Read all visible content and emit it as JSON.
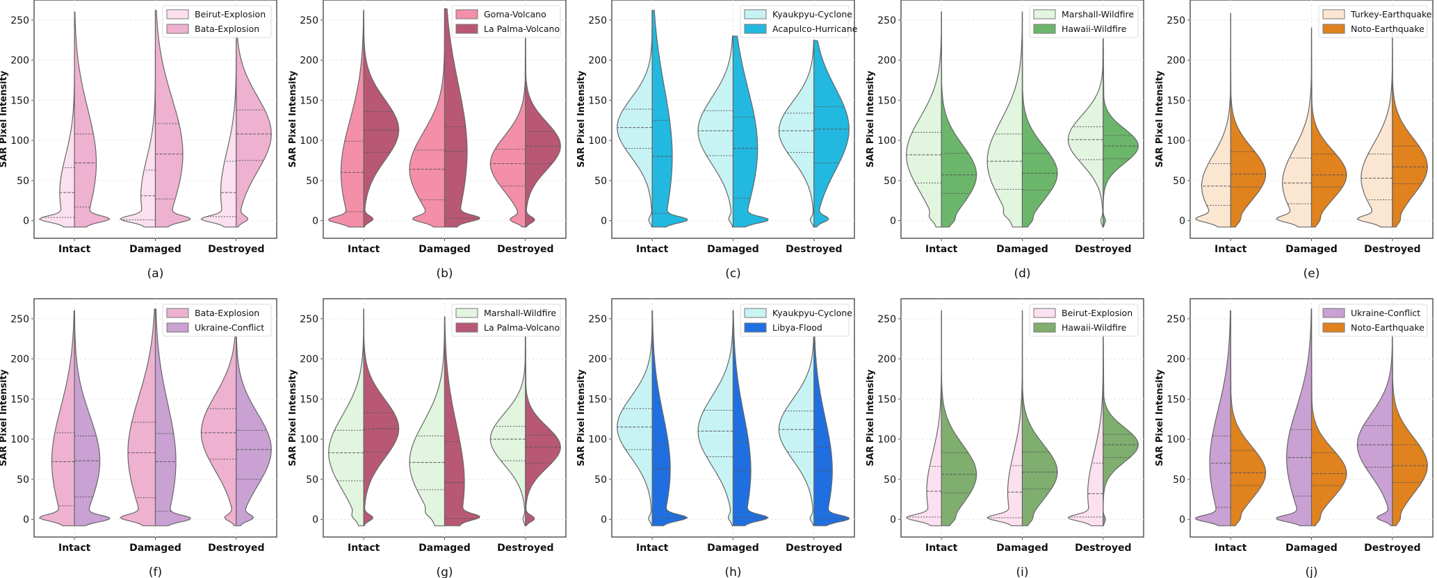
{
  "figure": {
    "ylabel": "SAR Pixel Intensity",
    "categories": [
      "Intact",
      "Damaged",
      "Destroyed"
    ],
    "yticks": [
      0,
      50,
      100,
      150,
      200,
      250
    ]
  },
  "chart_data": [
    {
      "panel": "(a)",
      "type": "violin-split",
      "xlabel": "",
      "ylabel": "SAR Pixel Intensity",
      "ylim": [
        -22,
        275
      ],
      "grid": true,
      "legend": "top-right",
      "categories": [
        "Intact",
        "Damaged",
        "Destroyed"
      ],
      "series": [
        {
          "name": "Beirut-Explosion",
          "color": "#fbe0ef",
          "side": "left",
          "stats": [
            {
              "q1": 4,
              "median": 35,
              "q3": 66,
              "max": 260,
              "spike": 2,
              "spread": 50
            },
            {
              "q1": 1,
              "median": 31,
              "q3": 63,
              "max": 262,
              "spike": 2,
              "spread": 50
            },
            {
              "q1": 5,
              "median": 35,
              "q3": 74,
              "max": 230,
              "spike": 2,
              "spread": 45
            }
          ]
        },
        {
          "name": "Bata-Explosion",
          "color": "#eeb1d0",
          "side": "right",
          "stats": [
            {
              "q1": 17,
              "median": 72,
              "q3": 108,
              "max": 260,
              "spike": 2,
              "spread": 32
            },
            {
              "q1": 27,
              "median": 83,
              "q3": 121,
              "max": 262,
              "spike": 2,
              "spread": 24
            },
            {
              "q1": 75,
              "median": 108,
              "q3": 138,
              "max": 230,
              "spike": 2,
              "spread": 8
            }
          ]
        }
      ]
    },
    {
      "panel": "(b)",
      "type": "violin-split",
      "ylabel": "SAR Pixel Intensity",
      "ylim": [
        -22,
        275
      ],
      "grid": true,
      "legend": "top-right",
      "categories": [
        "Intact",
        "Damaged",
        "Destroyed"
      ],
      "series": [
        {
          "name": "Goma-Volcano",
          "color": "#f48fa9",
          "side": "left",
          "stats": [
            {
              "q1": 11,
              "median": 60,
              "q3": 99,
              "max": 262,
              "spike": 1,
              "spread": 28
            },
            {
              "q1": 26,
              "median": 64,
              "q3": 88,
              "max": 264,
              "spike": 2,
              "spread": 16
            },
            {
              "q1": 43,
              "median": 71,
              "q3": 89,
              "max": 230,
              "spike": 1,
              "spread": 10
            }
          ]
        },
        {
          "name": "La Palma-Volcano",
          "color": "#b85874",
          "side": "right",
          "stats": [
            {
              "q1": 85,
              "median": 113,
              "q3": 136,
              "max": 262,
              "spike": 2,
              "spread": 8
            },
            {
              "q1": 3,
              "median": 86,
              "q3": 117,
              "max": 264,
              "spike": 3,
              "spread": 30
            },
            {
              "q1": 71,
              "median": 93,
              "q3": 111,
              "max": 230,
              "spike": 1,
              "spread": 8
            }
          ]
        }
      ]
    },
    {
      "panel": "(c)",
      "type": "violin-split",
      "ylabel": "SAR Pixel Intensity",
      "ylim": [
        -22,
        275
      ],
      "grid": true,
      "legend": "top-right",
      "categories": [
        "Intact",
        "Damaged",
        "Destroyed"
      ],
      "series": [
        {
          "name": "Kyaukpyu-Cyclone",
          "color": "#c8f3f4",
          "side": "left",
          "stats": [
            {
              "q1": 90,
              "median": 116,
              "q3": 139,
              "max": 262,
              "spike": 1,
              "spread": 3
            },
            {
              "q1": 81,
              "median": 112,
              "q3": 137,
              "max": 230,
              "spike": 2,
              "spread": 3
            },
            {
              "q1": 85,
              "median": 112,
              "q3": 134,
              "max": 225,
              "spike": 1,
              "spread": 3
            }
          ]
        },
        {
          "name": "Acapulco-Hurricane",
          "color": "#22b8e0",
          "side": "right",
          "stats": [
            {
              "q1": 9,
              "median": 80,
              "q3": 125,
              "max": 262,
              "spike": 1,
              "spread": 35
            },
            {
              "q1": 28,
              "median": 90,
              "q3": 129,
              "max": 230,
              "spike": 1,
              "spread": 30
            },
            {
              "q1": 72,
              "median": 114,
              "q3": 142,
              "max": 225,
              "spike": 2,
              "spread": 10
            }
          ]
        }
      ]
    },
    {
      "panel": "(d)",
      "type": "violin-split",
      "ylabel": "SAR Pixel Intensity",
      "ylim": [
        -22,
        275
      ],
      "grid": true,
      "legend": "top-right",
      "categories": [
        "Intact",
        "Damaged",
        "Destroyed"
      ],
      "series": [
        {
          "name": "Marshall-Wildfire",
          "color": "#e2f5df",
          "side": "left",
          "stats": [
            {
              "q1": 47,
              "median": 82,
              "q3": 110,
              "max": 260,
              "spike": 4,
              "spread": 3
            },
            {
              "q1": 39,
              "median": 74,
              "q3": 108,
              "max": 260,
              "spike": 8,
              "spread": 3
            },
            {
              "q1": 76,
              "median": 101,
              "q3": 117,
              "max": 227,
              "spike": 0,
              "spread": 2
            }
          ]
        },
        {
          "name": "Hawaii-Wildfire",
          "color": "#6bb66b",
          "side": "right",
          "stats": [
            {
              "q1": 34,
              "median": 57,
              "q3": 84,
              "max": 260,
              "spike": 0,
              "spread": 2
            },
            {
              "q1": 38,
              "median": 59,
              "q3": 84,
              "max": 260,
              "spike": 0,
              "spread": 2
            },
            {
              "q1": 77,
              "median": 93,
              "q3": 106,
              "max": 227,
              "spike": 0,
              "spread": 2
            }
          ]
        }
      ]
    },
    {
      "panel": "(e)",
      "type": "violin-split",
      "ylabel": "SAR Pixel Intensity",
      "ylim": [
        -22,
        275
      ],
      "grid": true,
      "legend": "top-right",
      "categories": [
        "Intact",
        "Damaged",
        "Destroyed"
      ],
      "series": [
        {
          "name": "Turkey-Earthquake",
          "color": "#fbe6d2",
          "side": "left",
          "stats": [
            {
              "q1": 19,
              "median": 43,
              "q3": 71,
              "max": 258,
              "spike": 2,
              "spread": 20
            },
            {
              "q1": 21,
              "median": 47,
              "q3": 78,
              "max": 240,
              "spike": 2,
              "spread": 20
            },
            {
              "q1": 26,
              "median": 53,
              "q3": 83,
              "max": 240,
              "spike": 2,
              "spread": 20
            }
          ]
        },
        {
          "name": "Noto-Earthquake",
          "color": "#e0821e",
          "side": "right",
          "stats": [
            {
              "q1": 42,
              "median": 58,
              "q3": 86,
              "max": 258,
              "spike": 0,
              "spread": 2
            },
            {
              "q1": 42,
              "median": 57,
              "q3": 83,
              "max": 240,
              "spike": 0,
              "spread": 2
            },
            {
              "q1": 46,
              "median": 67,
              "q3": 93,
              "max": 240,
              "spike": 0,
              "spread": 2
            }
          ]
        }
      ]
    },
    {
      "panel": "(f)",
      "type": "violin-split",
      "ylabel": "SAR Pixel Intensity",
      "ylim": [
        -22,
        275
      ],
      "grid": true,
      "legend": "top-right",
      "categories": [
        "Intact",
        "Damaged",
        "Destroyed"
      ],
      "series": [
        {
          "name": "Bata-Explosion",
          "color": "#eeb1d0",
          "side": "left",
          "stats": [
            {
              "q1": 17,
              "median": 72,
              "q3": 108,
              "max": 260,
              "spike": 2,
              "spread": 30
            },
            {
              "q1": 27,
              "median": 83,
              "q3": 121,
              "max": 262,
              "spike": 2,
              "spread": 24
            },
            {
              "q1": 75,
              "median": 108,
              "q3": 138,
              "max": 230,
              "spike": 2,
              "spread": 8
            }
          ]
        },
        {
          "name": "Ukraine-Conflict",
          "color": "#c9a1d3",
          "side": "right",
          "stats": [
            {
              "q1": 28,
              "median": 73,
              "q3": 104,
              "max": 260,
              "spike": 1,
              "spread": 30
            },
            {
              "q1": 10,
              "median": 72,
              "q3": 107,
              "max": 262,
              "spike": 1,
              "spread": 35
            },
            {
              "q1": 50,
              "median": 87,
              "q3": 111,
              "max": 230,
              "spike": 2,
              "spread": 10
            }
          ]
        }
      ]
    },
    {
      "panel": "(g)",
      "type": "violin-split",
      "ylabel": "SAR Pixel Intensity",
      "ylim": [
        -22,
        275
      ],
      "grid": true,
      "legend": "top-right",
      "categories": [
        "Intact",
        "Damaged",
        "Destroyed"
      ],
      "series": [
        {
          "name": "Marshall-Wildfire",
          "color": "#e2f5df",
          "side": "left",
          "stats": [
            {
              "q1": 48,
              "median": 83,
              "q3": 111,
              "max": 262,
              "spike": 4,
              "spread": 3
            },
            {
              "q1": 37,
              "median": 71,
              "q3": 104,
              "max": 253,
              "spike": 8,
              "spread": 3
            },
            {
              "q1": 73,
              "median": 100,
              "q3": 116,
              "max": 228,
              "spike": 0,
              "spread": 2
            }
          ]
        },
        {
          "name": "La Palma-Volcano",
          "color": "#b85874",
          "side": "right",
          "stats": [
            {
              "q1": 84,
              "median": 113,
              "q3": 133,
              "max": 262,
              "spike": 2,
              "spread": 8
            },
            {
              "q1": 1,
              "median": 46,
              "q3": 97,
              "max": 253,
              "spike": 3,
              "spread": 30
            },
            {
              "q1": 70,
              "median": 90,
              "q3": 105,
              "max": 228,
              "spike": 1,
              "spread": 8
            }
          ]
        }
      ]
    },
    {
      "panel": "(h)",
      "type": "violin-split",
      "ylabel": "SAR Pixel Intensity",
      "ylim": [
        -22,
        275
      ],
      "grid": true,
      "legend": "top-right",
      "categories": [
        "Intact",
        "Damaged",
        "Destroyed"
      ],
      "series": [
        {
          "name": "Kyaukpyu-Cyclone",
          "color": "#c8f3f4",
          "side": "left",
          "stats": [
            {
              "q1": 87,
              "median": 115,
              "q3": 138,
              "max": 260,
              "spike": 1,
              "spread": 3
            },
            {
              "q1": 78,
              "median": 110,
              "q3": 136,
              "max": 260,
              "spike": 2,
              "spread": 3
            },
            {
              "q1": 84,
              "median": 112,
              "q3": 135,
              "max": 228,
              "spike": 1,
              "spread": 3
            }
          ]
        },
        {
          "name": "Libya-Flood",
          "color": "#1f6fe0",
          "side": "right",
          "stats": [
            {
              "q1": 2,
              "median": 63,
              "q3": 93,
              "max": 260,
              "spike": 2,
              "spread": 40
            },
            {
              "q1": 2,
              "median": 61,
              "q3": 96,
              "max": 260,
              "spike": 2,
              "spread": 40
            },
            {
              "q1": 1,
              "median": 61,
              "q3": 90,
              "max": 228,
              "spike": 1,
              "spread": 40
            }
          ]
        }
      ]
    },
    {
      "panel": "(i)",
      "type": "violin-split",
      "ylabel": "SAR Pixel Intensity",
      "ylim": [
        -22,
        275
      ],
      "grid": true,
      "legend": "top-right",
      "categories": [
        "Intact",
        "Damaged",
        "Destroyed"
      ],
      "series": [
        {
          "name": "Beirut-Explosion",
          "color": "#fbe0ef",
          "side": "left",
          "stats": [
            {
              "q1": 3,
              "median": 35,
              "q3": 66,
              "max": 260,
              "spike": 2,
              "spread": 50
            },
            {
              "q1": 2,
              "median": 34,
              "q3": 67,
              "max": 260,
              "spike": 2,
              "spread": 50
            },
            {
              "q1": 3,
              "median": 32,
              "q3": 70,
              "max": 230,
              "spike": 2,
              "spread": 45
            }
          ]
        },
        {
          "name": "Hawaii-Wildfire",
          "color": "#7fae6e",
          "side": "right",
          "stats": [
            {
              "q1": 33,
              "median": 56,
              "q3": 83,
              "max": 260,
              "spike": 0,
              "spread": 2
            },
            {
              "q1": 38,
              "median": 59,
              "q3": 84,
              "max": 260,
              "spike": 0,
              "spread": 2
            },
            {
              "q1": 77,
              "median": 93,
              "q3": 106,
              "max": 230,
              "spike": 0,
              "spread": 2
            }
          ]
        }
      ]
    },
    {
      "panel": "(j)",
      "type": "violin-split",
      "ylabel": "SAR Pixel Intensity",
      "ylim": [
        -22,
        275
      ],
      "grid": true,
      "legend": "top-right",
      "categories": [
        "Intact",
        "Damaged",
        "Destroyed"
      ],
      "series": [
        {
          "name": "Ukraine-Conflict",
          "color": "#c9a1d3",
          "side": "left",
          "stats": [
            {
              "q1": 15,
              "median": 70,
              "q3": 104,
              "max": 260,
              "spike": 1,
              "spread": 35
            },
            {
              "q1": 29,
              "median": 77,
              "q3": 112,
              "max": 262,
              "spike": 1,
              "spread": 30
            },
            {
              "q1": 65,
              "median": 93,
              "q3": 117,
              "max": 230,
              "spike": 2,
              "spread": 12
            }
          ]
        },
        {
          "name": "Noto-Earthquake",
          "color": "#e0821e",
          "side": "right",
          "stats": [
            {
              "q1": 42,
              "median": 58,
              "q3": 86,
              "max": 260,
              "spike": 0,
              "spread": 2
            },
            {
              "q1": 42,
              "median": 57,
              "q3": 83,
              "max": 262,
              "spike": 0,
              "spread": 2
            },
            {
              "q1": 46,
              "median": 67,
              "q3": 93,
              "max": 230,
              "spike": 0,
              "spread": 2
            }
          ]
        }
      ]
    }
  ]
}
